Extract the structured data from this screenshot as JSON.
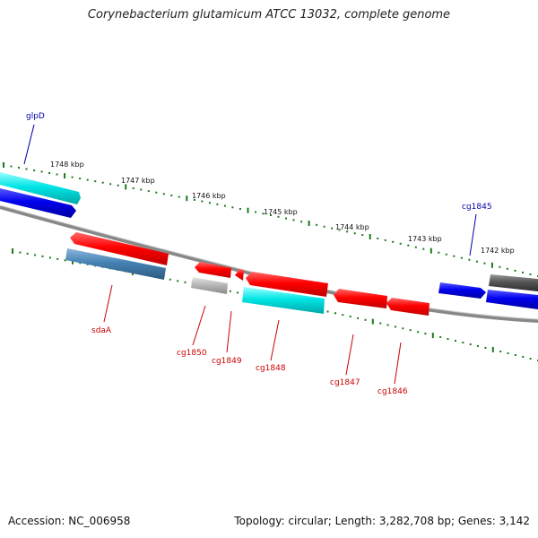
{
  "title": "Corynebacterium glutamicum ATCC 13032, complete genome",
  "footer": {
    "accession": "Accession: NC_006958",
    "summary": "Topology: circular; Length: 3,282,708 bp; Genes: 3,142"
  },
  "ticks": [
    "1748 kbp",
    "1747 kbp",
    "1746 kbp",
    "1745 kbp",
    "1744 kbp",
    "1743 kbp",
    "1742 kbp"
  ],
  "genes": [
    {
      "name": "glpD",
      "strand": "forward",
      "color": "#00cfcf"
    },
    {
      "name": "cg1845",
      "strand": "forward",
      "color": "#0000ee"
    },
    {
      "name": "sdaA",
      "strand": "reverse",
      "color": "#ff0000"
    },
    {
      "name": "cg1850",
      "strand": "reverse",
      "color": "#ff0000"
    },
    {
      "name": "cg1849",
      "strand": "reverse",
      "color": "#ff0000"
    },
    {
      "name": "cg1848",
      "strand": "reverse",
      "color": "#ff0000"
    },
    {
      "name": "cg1847",
      "strand": "reverse",
      "color": "#ff0000"
    },
    {
      "name": "cg1846",
      "strand": "reverse",
      "color": "#ff0000"
    }
  ],
  "colors": {
    "forward_label": "#0000aa",
    "reverse_label": "#cc0000",
    "ticks": "#1a7a1a",
    "backbone": "#888888",
    "cyan": "#00e5e5",
    "blue": "#0000ee",
    "red": "#ff1a1a",
    "gray_light": "#b8b8b8",
    "gray_dark": "#555555",
    "steel": "#4682b4"
  }
}
